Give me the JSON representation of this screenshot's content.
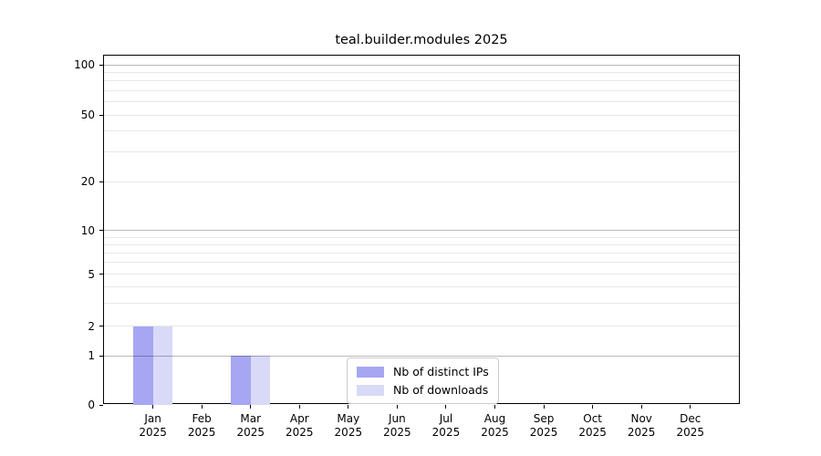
{
  "chart_data": {
    "type": "bar",
    "title": "teal.builder.modules 2025",
    "categories": [
      "Jan 2025",
      "Feb 2025",
      "Mar 2025",
      "Apr 2025",
      "May 2025",
      "Jun 2025",
      "Jul 2025",
      "Aug 2025",
      "Sep 2025",
      "Oct 2025",
      "Nov 2025",
      "Dec 2025"
    ],
    "series": [
      {
        "name": "Nb of distinct IPs",
        "color": "#a6a6f2",
        "values": [
          2,
          0,
          1,
          0,
          0,
          0,
          0,
          0,
          0,
          0,
          0,
          0
        ]
      },
      {
        "name": "Nb of downloads",
        "color": "#d9d9f8",
        "values": [
          2,
          0,
          1,
          0,
          0,
          0,
          0,
          0,
          0,
          0,
          0,
          0
        ]
      }
    ],
    "xlabel": "",
    "ylabel": "",
    "yscale": "log",
    "yticks": [
      0,
      1,
      2,
      5,
      10,
      20,
      50,
      100
    ],
    "ylim": [
      0,
      100
    ],
    "grid": true,
    "legend_position": "lower center",
    "background": "#ffffff"
  }
}
